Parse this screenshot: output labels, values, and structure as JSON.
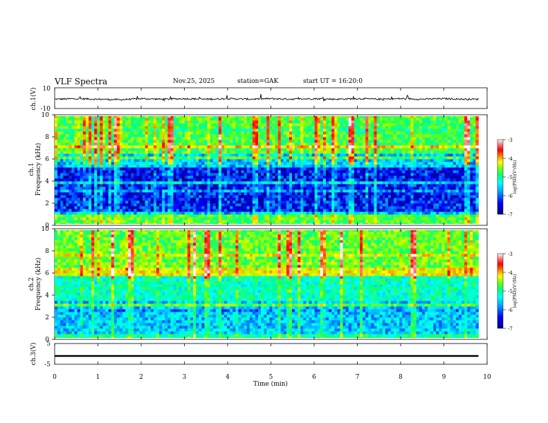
{
  "header": {
    "title": "VLF Spectra",
    "date": "Nov.25, 2025",
    "station": "station=GAK",
    "start": "start UT = 16:20:0"
  },
  "chart_data": [
    {
      "type": "line",
      "panel": "ch1-waveform",
      "ylabel": "ch.1(V)",
      "ylim": [
        -10,
        10
      ],
      "yticks": [
        "10",
        "-10"
      ],
      "description_value": "signal centered near -0.5 V with small fluctuations",
      "x": [
        0,
        0.5,
        1,
        1.5,
        2,
        2.5,
        3,
        3.5,
        4,
        4.5,
        5,
        5.5,
        6,
        6.5,
        7,
        7.5,
        8,
        8.5,
        9,
        9.5,
        9.8
      ],
      "values": [
        -1,
        -0.5,
        -1,
        -1.5,
        -0.5,
        -1,
        -0.5,
        -1,
        -0.5,
        -1,
        -0.5,
        -1,
        -0.5,
        -1,
        -0.5,
        -1,
        -0.5,
        -1,
        -0.5,
        -1,
        -1
      ]
    },
    {
      "type": "heatmap",
      "panel": "ch1-spectrogram",
      "ylabel": "ch.1",
      "ylabel2": "Frequency (kHz)",
      "yticks": [
        "0",
        "2",
        "4",
        "6",
        "8",
        "10"
      ],
      "ylim": [
        0,
        10
      ],
      "xlim": [
        0,
        9.8
      ],
      "colorbar": {
        "label": "log(PSD)(V²/Hz)",
        "ticks": [
          "-3",
          "-4",
          "-5",
          "-6",
          "-7"
        ],
        "range": [
          -7,
          -3
        ]
      },
      "bands": [
        {
          "from": 0,
          "to": 0.9,
          "level": -5.2
        },
        {
          "from": 0.9,
          "to": 1.1,
          "level": -4.8
        },
        {
          "from": 1.1,
          "to": 5.2,
          "level": -6.6
        },
        {
          "from": 5.2,
          "to": 6.4,
          "level": -6.0
        },
        {
          "from": 6.4,
          "to": 10,
          "level": -5.2
        }
      ]
    },
    {
      "type": "heatmap",
      "panel": "ch2-spectrogram",
      "ylabel": "ch.2",
      "ylabel2": "Frequency (kHz)",
      "yticks": [
        "0",
        "2",
        "4",
        "6",
        "8",
        "10"
      ],
      "ylim": [
        0,
        10
      ],
      "xlim": [
        0,
        9.8
      ],
      "colorbar": {
        "label": "log(PSD)(V²/Hz)",
        "ticks": [
          "-3",
          "-4",
          "-5",
          "-6",
          "-7"
        ],
        "range": [
          -7,
          -3
        ]
      },
      "bands": [
        {
          "from": 0,
          "to": 0.5,
          "level": -5.5
        },
        {
          "from": 0.5,
          "to": 3.5,
          "level": -6.0
        },
        {
          "from": 3.5,
          "to": 5.8,
          "level": -5.6
        },
        {
          "from": 5.8,
          "to": 6.4,
          "level": -4.6
        },
        {
          "from": 6.4,
          "to": 10,
          "level": -5.1
        }
      ]
    },
    {
      "type": "line",
      "panel": "ch3-waveform",
      "ylabel": "ch.3(V)",
      "ylim": [
        -5,
        5
      ],
      "yticks": [
        "5",
        "-5"
      ],
      "x": [
        0,
        9.8
      ],
      "values": [
        -1,
        -1
      ]
    }
  ],
  "xaxis": {
    "label": "Time (min)",
    "ticks": [
      "0",
      "1",
      "2",
      "3",
      "4",
      "5",
      "6",
      "7",
      "8",
      "9",
      "10"
    ],
    "range": [
      0,
      10
    ]
  },
  "colors": {
    "colormap": [
      "#000080",
      "#0000ff",
      "#00a0ff",
      "#00ffff",
      "#00ff80",
      "#80ff00",
      "#ffff00",
      "#ff8000",
      "#ff0000",
      "#ff8080",
      "#ffffff"
    ]
  }
}
